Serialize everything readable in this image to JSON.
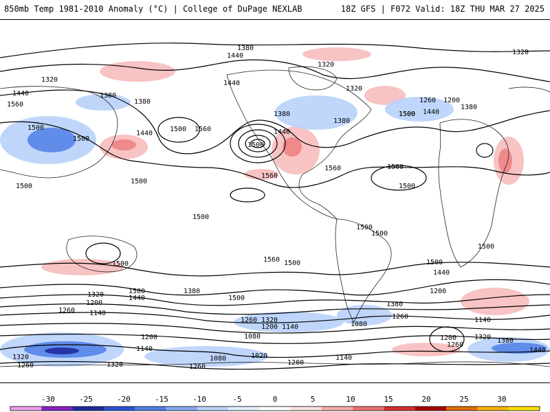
{
  "header": {
    "left_title": "850mb Temp 1981-2010 Anomaly (°C) | College of DuPage NEXLAB",
    "right_title": "18Z GFS | F072 Valid: 18Z THU MAR 27 2025"
  },
  "map": {
    "contour_labels": [
      "1380",
      "1440",
      "1320",
      "1320",
      "1440",
      "1380",
      "1320",
      "1260",
      "1200",
      "1380",
      "1500",
      "1440",
      "1320",
      "1560",
      "1380",
      "1500",
      "1500",
      "1440",
      "1500",
      "1560",
      "1440",
      "1500",
      "1380",
      "1440",
      "1380",
      "1500",
      "1560",
      "1560",
      "1500",
      "1500",
      "1500",
      "1500",
      "1500",
      "1500",
      "1500",
      "1560",
      "1500",
      "1500",
      "1500",
      "1500",
      "1440",
      "1440",
      "1560",
      "1380",
      "1320",
      "1200",
      "1140",
      "1380",
      "1200",
      "1260",
      "1500",
      "1260",
      "1320",
      "1140",
      "1080",
      "1200",
      "1260",
      "1140",
      "1080",
      "1200",
      "1140",
      "1080",
      "1020",
      "1200",
      "1140",
      "1380",
      "1260",
      "1320",
      "1200",
      "1440",
      "1320",
      "1260",
      "1320",
      "1260"
    ]
  },
  "colorbar": {
    "ticks": [
      "-30",
      "-25",
      "-20",
      "-15",
      "-10",
      "-5",
      "0",
      "5",
      "10",
      "15",
      "20",
      "25",
      "30"
    ],
    "colors": [
      "#e8a0e8",
      "#8a1fc8",
      "#1f2a9e",
      "#2d52d6",
      "#4f7fe6",
      "#86a9f2",
      "#bcd4fa",
      "#e3eefc",
      "#ffffff",
      "#fde0e0",
      "#f6aaaa",
      "#ee6f6f",
      "#d72e2e",
      "#a80000",
      "#e06a00",
      "#f9b200",
      "#ffe000"
    ]
  }
}
